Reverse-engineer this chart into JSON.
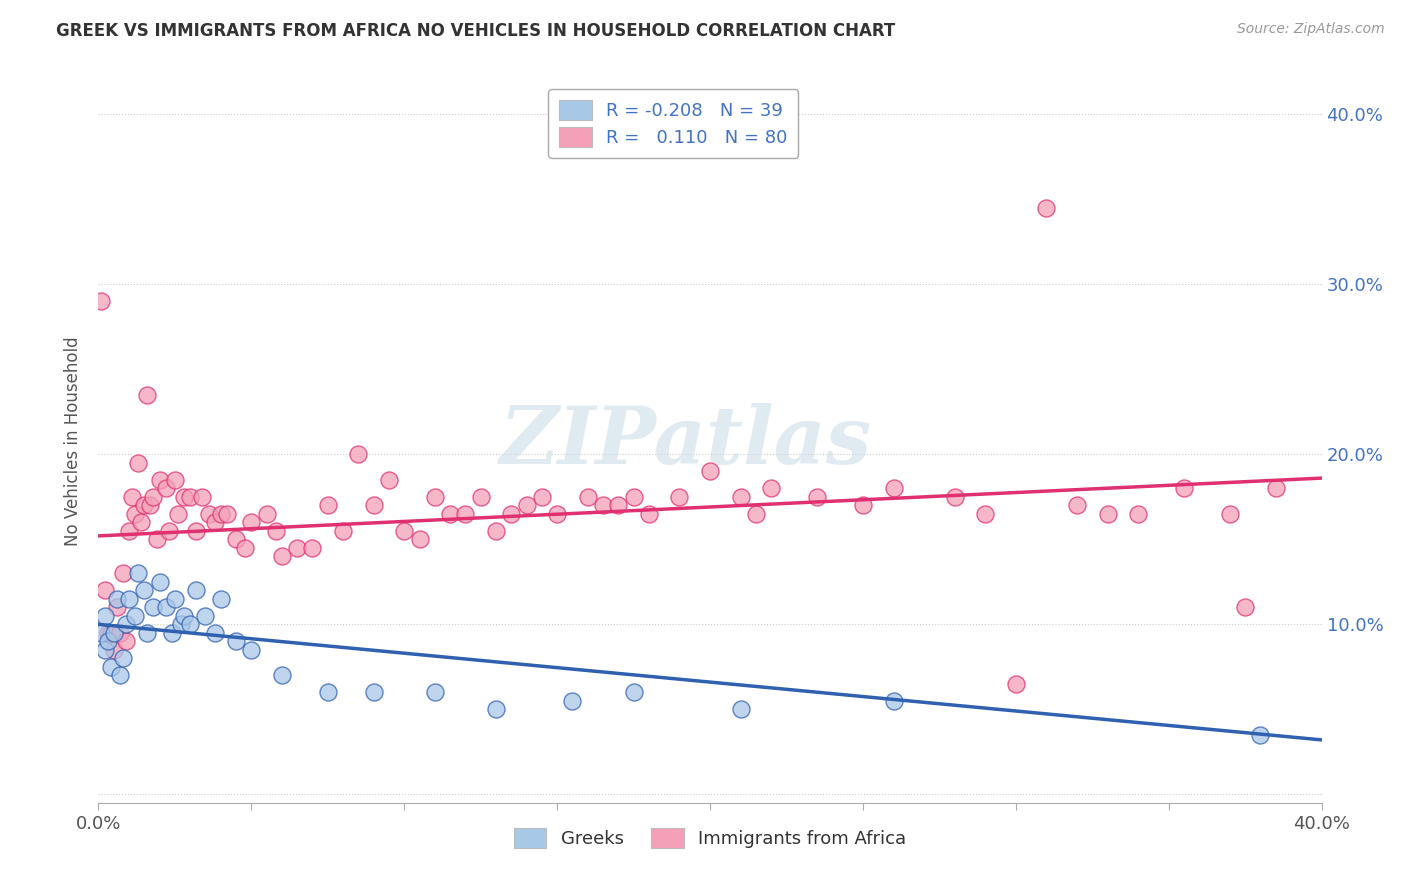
{
  "title": "GREEK VS IMMIGRANTS FROM AFRICA NO VEHICLES IN HOUSEHOLD CORRELATION CHART",
  "source": "Source: ZipAtlas.com",
  "ylabel": "No Vehicles in Household",
  "yticks": [
    "",
    "10.0%",
    "20.0%",
    "30.0%",
    "40.0%"
  ],
  "ytick_vals": [
    0.0,
    0.1,
    0.2,
    0.3,
    0.4
  ],
  "xlim": [
    0.0,
    0.4
  ],
  "ylim": [
    -0.005,
    0.42
  ],
  "blue_color": "#a8c8e8",
  "pink_color": "#f4a0b8",
  "blue_line_color": "#3060b0",
  "pink_line_color": "#e03070",
  "watermark": "ZIPatlas",
  "watermark_color": "#ccdde8",
  "background_color": "#ffffff",
  "greek_points_x": [
    0.001,
    0.002,
    0.002,
    0.003,
    0.004,
    0.005,
    0.006,
    0.007,
    0.008,
    0.009,
    0.01,
    0.012,
    0.013,
    0.015,
    0.016,
    0.018,
    0.02,
    0.022,
    0.024,
    0.025,
    0.027,
    0.028,
    0.03,
    0.032,
    0.035,
    0.038,
    0.04,
    0.045,
    0.05,
    0.06,
    0.075,
    0.09,
    0.11,
    0.13,
    0.155,
    0.175,
    0.21,
    0.26,
    0.38
  ],
  "greek_points_y": [
    0.095,
    0.105,
    0.085,
    0.09,
    0.075,
    0.095,
    0.115,
    0.07,
    0.08,
    0.1,
    0.115,
    0.105,
    0.13,
    0.12,
    0.095,
    0.11,
    0.125,
    0.11,
    0.095,
    0.115,
    0.1,
    0.105,
    0.1,
    0.12,
    0.105,
    0.095,
    0.115,
    0.09,
    0.085,
    0.07,
    0.06,
    0.06,
    0.06,
    0.05,
    0.055,
    0.06,
    0.05,
    0.055,
    0.035
  ],
  "africa_points_x": [
    0.001,
    0.002,
    0.003,
    0.004,
    0.005,
    0.006,
    0.007,
    0.008,
    0.009,
    0.01,
    0.011,
    0.012,
    0.013,
    0.014,
    0.015,
    0.016,
    0.017,
    0.018,
    0.019,
    0.02,
    0.022,
    0.023,
    0.025,
    0.026,
    0.028,
    0.03,
    0.032,
    0.034,
    0.036,
    0.038,
    0.04,
    0.042,
    0.045,
    0.048,
    0.05,
    0.055,
    0.058,
    0.06,
    0.065,
    0.07,
    0.075,
    0.08,
    0.085,
    0.09,
    0.095,
    0.1,
    0.105,
    0.11,
    0.115,
    0.12,
    0.125,
    0.13,
    0.135,
    0.14,
    0.145,
    0.15,
    0.16,
    0.165,
    0.17,
    0.175,
    0.18,
    0.19,
    0.2,
    0.21,
    0.215,
    0.22,
    0.235,
    0.25,
    0.26,
    0.28,
    0.29,
    0.3,
    0.31,
    0.32,
    0.33,
    0.34,
    0.355,
    0.37,
    0.375,
    0.385
  ],
  "africa_points_y": [
    0.29,
    0.12,
    0.095,
    0.095,
    0.085,
    0.11,
    0.095,
    0.13,
    0.09,
    0.155,
    0.175,
    0.165,
    0.195,
    0.16,
    0.17,
    0.235,
    0.17,
    0.175,
    0.15,
    0.185,
    0.18,
    0.155,
    0.185,
    0.165,
    0.175,
    0.175,
    0.155,
    0.175,
    0.165,
    0.16,
    0.165,
    0.165,
    0.15,
    0.145,
    0.16,
    0.165,
    0.155,
    0.14,
    0.145,
    0.145,
    0.17,
    0.155,
    0.2,
    0.17,
    0.185,
    0.155,
    0.15,
    0.175,
    0.165,
    0.165,
    0.175,
    0.155,
    0.165,
    0.17,
    0.175,
    0.165,
    0.175,
    0.17,
    0.17,
    0.175,
    0.165,
    0.175,
    0.19,
    0.175,
    0.165,
    0.18,
    0.175,
    0.17,
    0.18,
    0.175,
    0.165,
    0.065,
    0.345,
    0.17,
    0.165,
    0.165,
    0.18,
    0.165,
    0.11,
    0.18
  ],
  "blue_intercept": 0.1,
  "blue_slope": -0.17,
  "pink_intercept": 0.152,
  "pink_slope": 0.085
}
